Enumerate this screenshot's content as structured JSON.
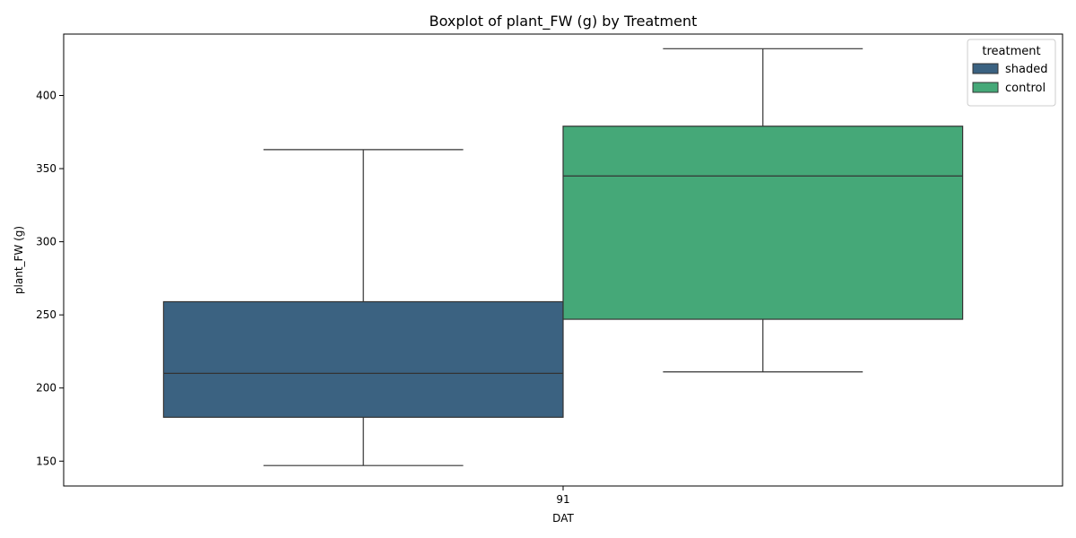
{
  "chart_data": {
    "type": "box",
    "title": "Boxplot of plant_FW (g) by Treatment",
    "xlabel": "DAT",
    "ylabel": "plant_FW (g)",
    "categories": [
      "91"
    ],
    "ylim": [
      133,
      442
    ],
    "yticks": [
      150,
      200,
      250,
      300,
      350,
      400
    ],
    "grid": false,
    "legend": {
      "title": "treatment",
      "placement": "top-right",
      "entries": [
        "shaded",
        "control"
      ]
    },
    "series": [
      {
        "name": "shaded",
        "color": "#3b6281",
        "category": "91",
        "whisker_low": 147,
        "q1": 180,
        "median": 210,
        "q3": 259,
        "whisker_high": 363
      },
      {
        "name": "control",
        "color": "#45a878",
        "category": "91",
        "whisker_low": 211,
        "q1": 247,
        "median": 345,
        "q3": 379,
        "whisker_high": 432
      }
    ]
  }
}
